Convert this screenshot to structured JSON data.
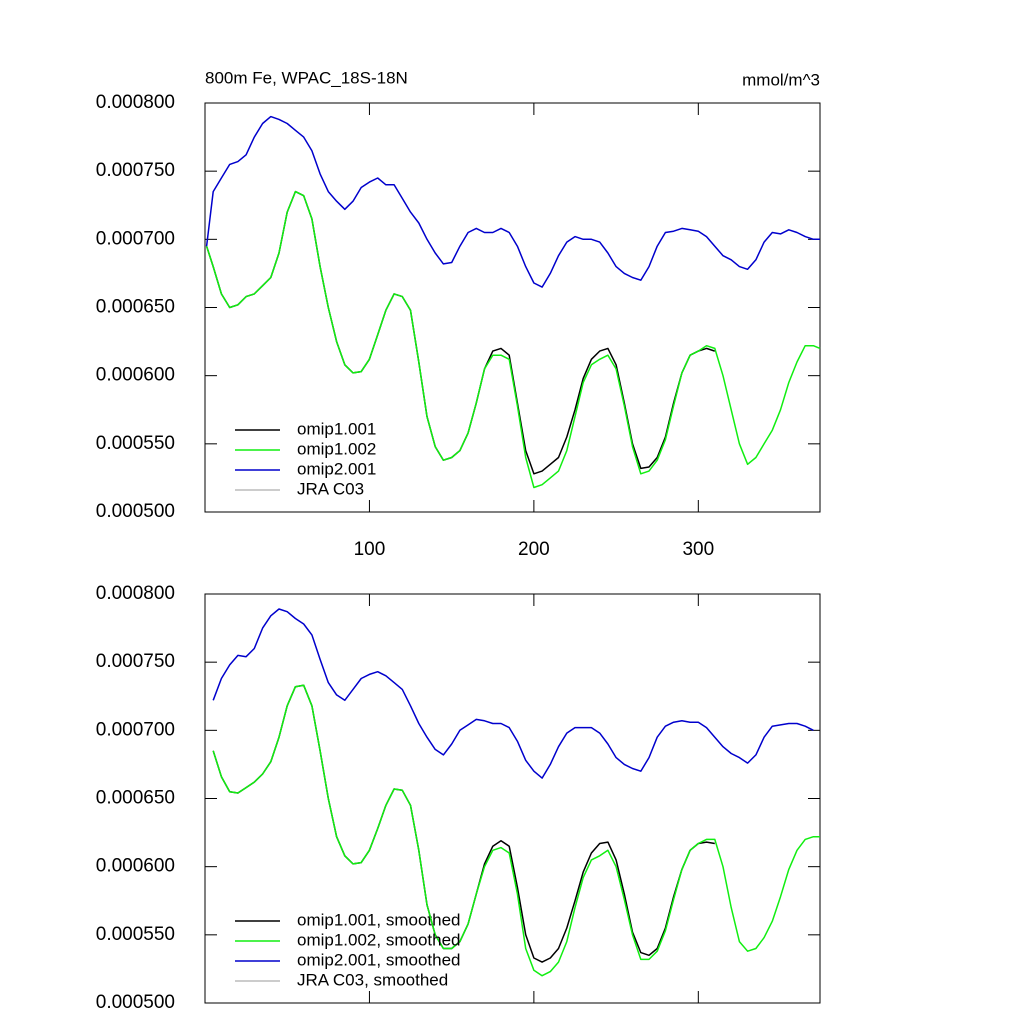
{
  "chart_data": [
    {
      "type": "line",
      "title": "800m Fe, WPAC_18S-18N",
      "subtitle": "mmol/m^3",
      "x": [
        1,
        5,
        10,
        15,
        20,
        25,
        30,
        35,
        40,
        45,
        50,
        55,
        60,
        65,
        70,
        75,
        80,
        85,
        90,
        95,
        100,
        105,
        110,
        115,
        120,
        125,
        130,
        135,
        140,
        145,
        150,
        155,
        160,
        165,
        170,
        175,
        180,
        185,
        190,
        195,
        200,
        205,
        210,
        215,
        220,
        225,
        230,
        235,
        240,
        245,
        250,
        255,
        260,
        265,
        270,
        275,
        280,
        285,
        290,
        295,
        300,
        305,
        310,
        315,
        320,
        325,
        330,
        335,
        340,
        345,
        350,
        355,
        360,
        365,
        370,
        374
      ],
      "xlim": [
        0,
        374
      ],
      "xticks": [
        100,
        200,
        300
      ],
      "ylim": [
        0.0005,
        0.0008
      ],
      "yticks": [
        {
          "value": 0.0005,
          "label": "0.000500"
        },
        {
          "value": 0.00055,
          "label": "0.000550"
        },
        {
          "value": 0.0006,
          "label": "0.000600"
        },
        {
          "value": 0.00065,
          "label": "0.000650"
        },
        {
          "value": 0.0007,
          "label": "0.000700"
        },
        {
          "value": 0.00075,
          "label": "0.000750"
        },
        {
          "value": 0.0008,
          "label": "0.000800"
        }
      ],
      "legend": "lower left",
      "series": [
        {
          "name": "omip1.001",
          "color": "#000000",
          "values": [
            0.000695,
            0.00068,
            0.00066,
            0.00065,
            0.000652,
            0.000658,
            0.00066,
            0.000666,
            0.000672,
            0.00069,
            0.00072,
            0.000735,
            0.000732,
            0.000715,
            0.00068,
            0.00065,
            0.000625,
            0.000608,
            0.000602,
            0.000603,
            0.000612,
            0.00063,
            0.000648,
            0.00066,
            0.000658,
            0.000648,
            0.00061,
            0.00057,
            0.000548,
            0.000538,
            0.00054,
            0.000545,
            0.000558,
            0.00058,
            0.000605,
            0.000618,
            0.00062,
            0.000615,
            0.00058,
            0.000545,
            0.000528,
            0.00053,
            0.000535,
            0.00054,
            0.000555,
            0.000575,
            0.000598,
            0.000612,
            0.000618,
            0.00062,
            0.000608,
            0.00058,
            0.00055,
            0.000532,
            0.000533,
            0.00054,
            0.000555,
            0.00058,
            0.000602,
            0.000615,
            0.000618,
            0.00062,
            0.000618,
            null,
            null,
            null,
            null,
            null,
            null,
            null,
            null,
            null,
            null,
            null,
            null,
            null
          ]
        },
        {
          "name": "omip1.002",
          "color": "#11ee11",
          "values": [
            0.000695,
            0.00068,
            0.00066,
            0.00065,
            0.000652,
            0.000658,
            0.00066,
            0.000666,
            0.000672,
            0.00069,
            0.00072,
            0.000735,
            0.000732,
            0.000715,
            0.00068,
            0.00065,
            0.000625,
            0.000608,
            0.000602,
            0.000603,
            0.000612,
            0.00063,
            0.000648,
            0.00066,
            0.000658,
            0.000648,
            0.00061,
            0.00057,
            0.000548,
            0.000538,
            0.00054,
            0.000545,
            0.000558,
            0.00058,
            0.000605,
            0.000615,
            0.000615,
            0.000612,
            0.000578,
            0.00054,
            0.000518,
            0.00052,
            0.000525,
            0.00053,
            0.000545,
            0.00057,
            0.000595,
            0.000608,
            0.000612,
            0.000615,
            0.000605,
            0.000578,
            0.000548,
            0.000528,
            0.00053,
            0.000538,
            0.000553,
            0.000578,
            0.000602,
            0.000615,
            0.000618,
            0.000622,
            0.00062,
            0.0006,
            0.000575,
            0.00055,
            0.000535,
            0.00054,
            0.00055,
            0.00056,
            0.000575,
            0.000595,
            0.00061,
            0.000622,
            0.000622,
            0.00062
          ]
        },
        {
          "name": "omip2.001",
          "color": "#0000cc",
          "values": [
            0.000695,
            0.000735,
            0.000745,
            0.000755,
            0.000757,
            0.000762,
            0.000775,
            0.000785,
            0.00079,
            0.000788,
            0.000785,
            0.00078,
            0.000775,
            0.000765,
            0.000748,
            0.000735,
            0.000728,
            0.000722,
            0.000728,
            0.000738,
            0.000742,
            0.000745,
            0.00074,
            0.00074,
            0.00073,
            0.00072,
            0.000712,
            0.0007,
            0.00069,
            0.000682,
            0.000683,
            0.000695,
            0.000705,
            0.000708,
            0.000705,
            0.000705,
            0.000708,
            0.000705,
            0.000695,
            0.00068,
            0.000668,
            0.000665,
            0.000675,
            0.000688,
            0.000698,
            0.000702,
            0.0007,
            0.0007,
            0.000698,
            0.00069,
            0.00068,
            0.000675,
            0.000672,
            0.00067,
            0.00068,
            0.000695,
            0.000705,
            0.000706,
            0.000708,
            0.000707,
            0.000706,
            0.000702,
            0.000695,
            0.000688,
            0.000685,
            0.00068,
            0.000678,
            0.000685,
            0.000698,
            0.000705,
            0.000704,
            0.000707,
            0.000705,
            0.000702,
            0.0007,
            0.0007
          ]
        },
        {
          "name": "JRA C03",
          "color": "#bbbbbb",
          "values": [
            null,
            null,
            null,
            null,
            null,
            null,
            null,
            null,
            null,
            null,
            null,
            null,
            null,
            null,
            null,
            null,
            null,
            null,
            null,
            null,
            null,
            null,
            null,
            null,
            null,
            null,
            null,
            null,
            null,
            null,
            null,
            null,
            null,
            null,
            null,
            null,
            null,
            null,
            null,
            null,
            null,
            null,
            null,
            null,
            null,
            null,
            null,
            null,
            null,
            null,
            null,
            null,
            null,
            null,
            null,
            null,
            null,
            null,
            null,
            null,
            null,
            null,
            null,
            null,
            null,
            null,
            null,
            null,
            null,
            null,
            null,
            null,
            null,
            null,
            null,
            null
          ]
        }
      ]
    },
    {
      "type": "line",
      "x": [
        1,
        5,
        10,
        15,
        20,
        25,
        30,
        35,
        40,
        45,
        50,
        55,
        60,
        65,
        70,
        75,
        80,
        85,
        90,
        95,
        100,
        105,
        110,
        115,
        120,
        125,
        130,
        135,
        140,
        145,
        150,
        155,
        160,
        165,
        170,
        175,
        180,
        185,
        190,
        195,
        200,
        205,
        210,
        215,
        220,
        225,
        230,
        235,
        240,
        245,
        250,
        255,
        260,
        265,
        270,
        275,
        280,
        285,
        290,
        295,
        300,
        305,
        310,
        315,
        320,
        325,
        330,
        335,
        340,
        345,
        350,
        355,
        360,
        365,
        370,
        374
      ],
      "xlim": [
        0,
        374
      ],
      "xticks": [
        100,
        200,
        300
      ],
      "ylim": [
        0.0005,
        0.0008
      ],
      "yticks": [
        {
          "value": 0.0005,
          "label": "0.000500"
        },
        {
          "value": 0.00055,
          "label": "0.000550"
        },
        {
          "value": 0.0006,
          "label": "0.000600"
        },
        {
          "value": 0.00065,
          "label": "0.000650"
        },
        {
          "value": 0.0007,
          "label": "0.000700"
        },
        {
          "value": 0.00075,
          "label": "0.000750"
        },
        {
          "value": 0.0008,
          "label": "0.000800"
        }
      ],
      "legend": "lower left",
      "series": [
        {
          "name": "omip1.001, smoothed",
          "color": "#000000",
          "values": [
            null,
            0.000685,
            0.000666,
            0.000655,
            0.000654,
            0.000658,
            0.000662,
            0.000668,
            0.000677,
            0.000695,
            0.000718,
            0.000732,
            0.000733,
            0.000718,
            0.000685,
            0.00065,
            0.000622,
            0.000608,
            0.000602,
            0.000603,
            0.000612,
            0.000628,
            0.000645,
            0.000657,
            0.000656,
            0.000645,
            0.000612,
            0.000572,
            0.00055,
            0.00054,
            0.00054,
            0.000545,
            0.000558,
            0.00058,
            0.000602,
            0.000615,
            0.000619,
            0.000615,
            0.000585,
            0.00055,
            0.000533,
            0.00053,
            0.000533,
            0.00054,
            0.000555,
            0.000575,
            0.000596,
            0.00061,
            0.000617,
            0.000618,
            0.000605,
            0.00058,
            0.000552,
            0.000537,
            0.000535,
            0.00054,
            0.000555,
            0.000578,
            0.000598,
            0.000612,
            0.000617,
            0.000618,
            0.000617,
            null,
            null,
            null,
            null,
            null,
            null,
            null,
            null,
            null,
            null,
            null,
            null,
            null
          ]
        },
        {
          "name": "omip1.002, smoothed",
          "color": "#11ee11",
          "values": [
            null,
            0.000685,
            0.000666,
            0.000655,
            0.000654,
            0.000658,
            0.000662,
            0.000668,
            0.000677,
            0.000695,
            0.000718,
            0.000732,
            0.000733,
            0.000718,
            0.000685,
            0.00065,
            0.000622,
            0.000608,
            0.000602,
            0.000603,
            0.000612,
            0.000628,
            0.000645,
            0.000657,
            0.000656,
            0.000645,
            0.000612,
            0.000572,
            0.00055,
            0.00054,
            0.00054,
            0.000545,
            0.000558,
            0.00058,
            0.0006,
            0.000612,
            0.000614,
            0.00061,
            0.00058,
            0.00054,
            0.000524,
            0.00052,
            0.000523,
            0.00053,
            0.000545,
            0.00057,
            0.000592,
            0.000605,
            0.000608,
            0.000612,
            0.0006,
            0.000576,
            0.00055,
            0.000532,
            0.000532,
            0.000538,
            0.000553,
            0.000576,
            0.000598,
            0.000612,
            0.000617,
            0.00062,
            0.00062,
            0.0006,
            0.00057,
            0.000545,
            0.000538,
            0.00054,
            0.000548,
            0.00056,
            0.000578,
            0.000598,
            0.000612,
            0.00062,
            0.000622,
            0.000622
          ]
        },
        {
          "name": "omip2.001, smoothed",
          "color": "#0000cc",
          "values": [
            null,
            0.000722,
            0.000738,
            0.000748,
            0.000755,
            0.000754,
            0.00076,
            0.000775,
            0.000784,
            0.000789,
            0.000787,
            0.000782,
            0.000778,
            0.00077,
            0.000752,
            0.000735,
            0.000726,
            0.000722,
            0.00073,
            0.000738,
            0.000741,
            0.000743,
            0.00074,
            0.000735,
            0.00073,
            0.000718,
            0.000705,
            0.000695,
            0.000686,
            0.000682,
            0.00069,
            0.0007,
            0.000704,
            0.000708,
            0.000707,
            0.000705,
            0.000705,
            0.000702,
            0.000692,
            0.000678,
            0.00067,
            0.000665,
            0.000675,
            0.000688,
            0.000698,
            0.000702,
            0.000702,
            0.000702,
            0.000698,
            0.00069,
            0.00068,
            0.000675,
            0.000672,
            0.00067,
            0.00068,
            0.000695,
            0.000703,
            0.000706,
            0.000707,
            0.000706,
            0.000706,
            0.000702,
            0.000695,
            0.000688,
            0.000683,
            0.00068,
            0.000676,
            0.000682,
            0.000695,
            0.000703,
            0.000704,
            0.000705,
            0.000705,
            0.000703,
            0.0007,
            null
          ]
        },
        {
          "name": "JRA C03, smoothed",
          "color": "#bbbbbb",
          "values": [
            null,
            null,
            null,
            null,
            null,
            null,
            null,
            null,
            null,
            null,
            null,
            null,
            null,
            null,
            null,
            null,
            null,
            null,
            null,
            null,
            null,
            null,
            null,
            null,
            null,
            null,
            null,
            null,
            null,
            null,
            null,
            null,
            null,
            null,
            null,
            null,
            null,
            null,
            null,
            null,
            null,
            null,
            null,
            null,
            null,
            null,
            null,
            null,
            null,
            null,
            null,
            null,
            null,
            null,
            null,
            null,
            null,
            null,
            null,
            null,
            null,
            null,
            null,
            null,
            null,
            null,
            null,
            null,
            null,
            null,
            null,
            null,
            null,
            null,
            null,
            null
          ]
        }
      ]
    }
  ]
}
